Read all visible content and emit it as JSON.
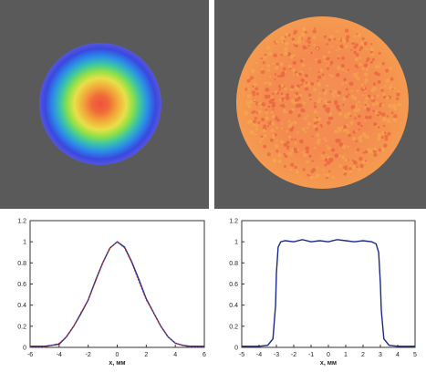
{
  "chart_data": [
    {
      "type": "line",
      "xlabel": "x, мм",
      "ylabel": "",
      "xlim": [
        -6,
        6
      ],
      "ylim": [
        0,
        1.2
      ],
      "x_ticks": [
        "-6",
        "-4",
        "-2",
        "0",
        "2",
        "4",
        "6"
      ],
      "y_ticks": [
        "0",
        "0.2",
        "0.4",
        "0.6",
        "0.8",
        "1",
        "1.2"
      ],
      "grid": false,
      "colors": {
        "measured": "#1a2a8a",
        "fit": "#c03030"
      },
      "series": [
        {
          "x": [
            -6,
            -5.5,
            -5,
            -4.5,
            -4,
            -3.5,
            -3,
            -2.5,
            -2,
            -1.5,
            -1,
            -0.5,
            0,
            0.5,
            1,
            1.5,
            2,
            2.5,
            3,
            3.5,
            4,
            4.5,
            5,
            5.5,
            6
          ],
          "values": [
            0.01,
            0.01,
            0.01,
            0.02,
            0.03,
            0.1,
            0.2,
            0.32,
            0.45,
            0.63,
            0.8,
            0.94,
            1.0,
            0.95,
            0.81,
            0.64,
            0.46,
            0.33,
            0.2,
            0.1,
            0.04,
            0.02,
            0.01,
            0.01,
            0.01
          ]
        },
        {
          "x": [
            -6,
            -5.5,
            -5,
            -4.5,
            -4,
            -3.5,
            -3,
            -2.5,
            -2,
            -1.5,
            -1,
            -0.5,
            0,
            0.5,
            1,
            1.5,
            2,
            2.5,
            3,
            3.5,
            4,
            4.5,
            5,
            5.5,
            6
          ],
          "values": [
            0.0,
            0.0,
            0.0,
            0.02,
            0.04,
            0.1,
            0.2,
            0.33,
            0.45,
            0.62,
            0.8,
            0.94,
            1.0,
            0.94,
            0.8,
            0.62,
            0.45,
            0.33,
            0.2,
            0.1,
            0.04,
            0.02,
            0.0,
            0.0,
            0.0
          ]
        }
      ]
    },
    {
      "type": "line",
      "xlabel": "x, мм",
      "ylabel": "",
      "xlim": [
        -5,
        5
      ],
      "ylim": [
        0,
        1.2
      ],
      "x_ticks": [
        "-5",
        "-4",
        "-3",
        "-2",
        "-1",
        "0",
        "1",
        "2",
        "3",
        "4",
        "5"
      ],
      "y_ticks": [
        "0",
        "0.2",
        "0.4",
        "0.6",
        "0.8",
        "1",
        "1.2"
      ],
      "grid": false,
      "colors": {
        "measured": "#1a2a8a"
      },
      "series": [
        {
          "x": [
            -5,
            -4.5,
            -4,
            -3.5,
            -3.2,
            -3.05,
            -3,
            -2.9,
            -2.75,
            -2.5,
            -2,
            -1.5,
            -1,
            -0.5,
            0,
            0.5,
            1,
            1.5,
            2,
            2.5,
            2.75,
            2.9,
            3,
            3.05,
            3.2,
            3.5,
            4,
            4.5,
            5
          ],
          "values": [
            0.01,
            0.01,
            0.01,
            0.02,
            0.08,
            0.4,
            0.7,
            0.95,
            1.0,
            1.01,
            1.0,
            1.02,
            1.0,
            1.01,
            1.0,
            1.02,
            1.01,
            1.0,
            1.01,
            1.0,
            0.98,
            0.9,
            0.6,
            0.35,
            0.08,
            0.02,
            0.01,
            0.01,
            0.01
          ]
        }
      ]
    }
  ]
}
